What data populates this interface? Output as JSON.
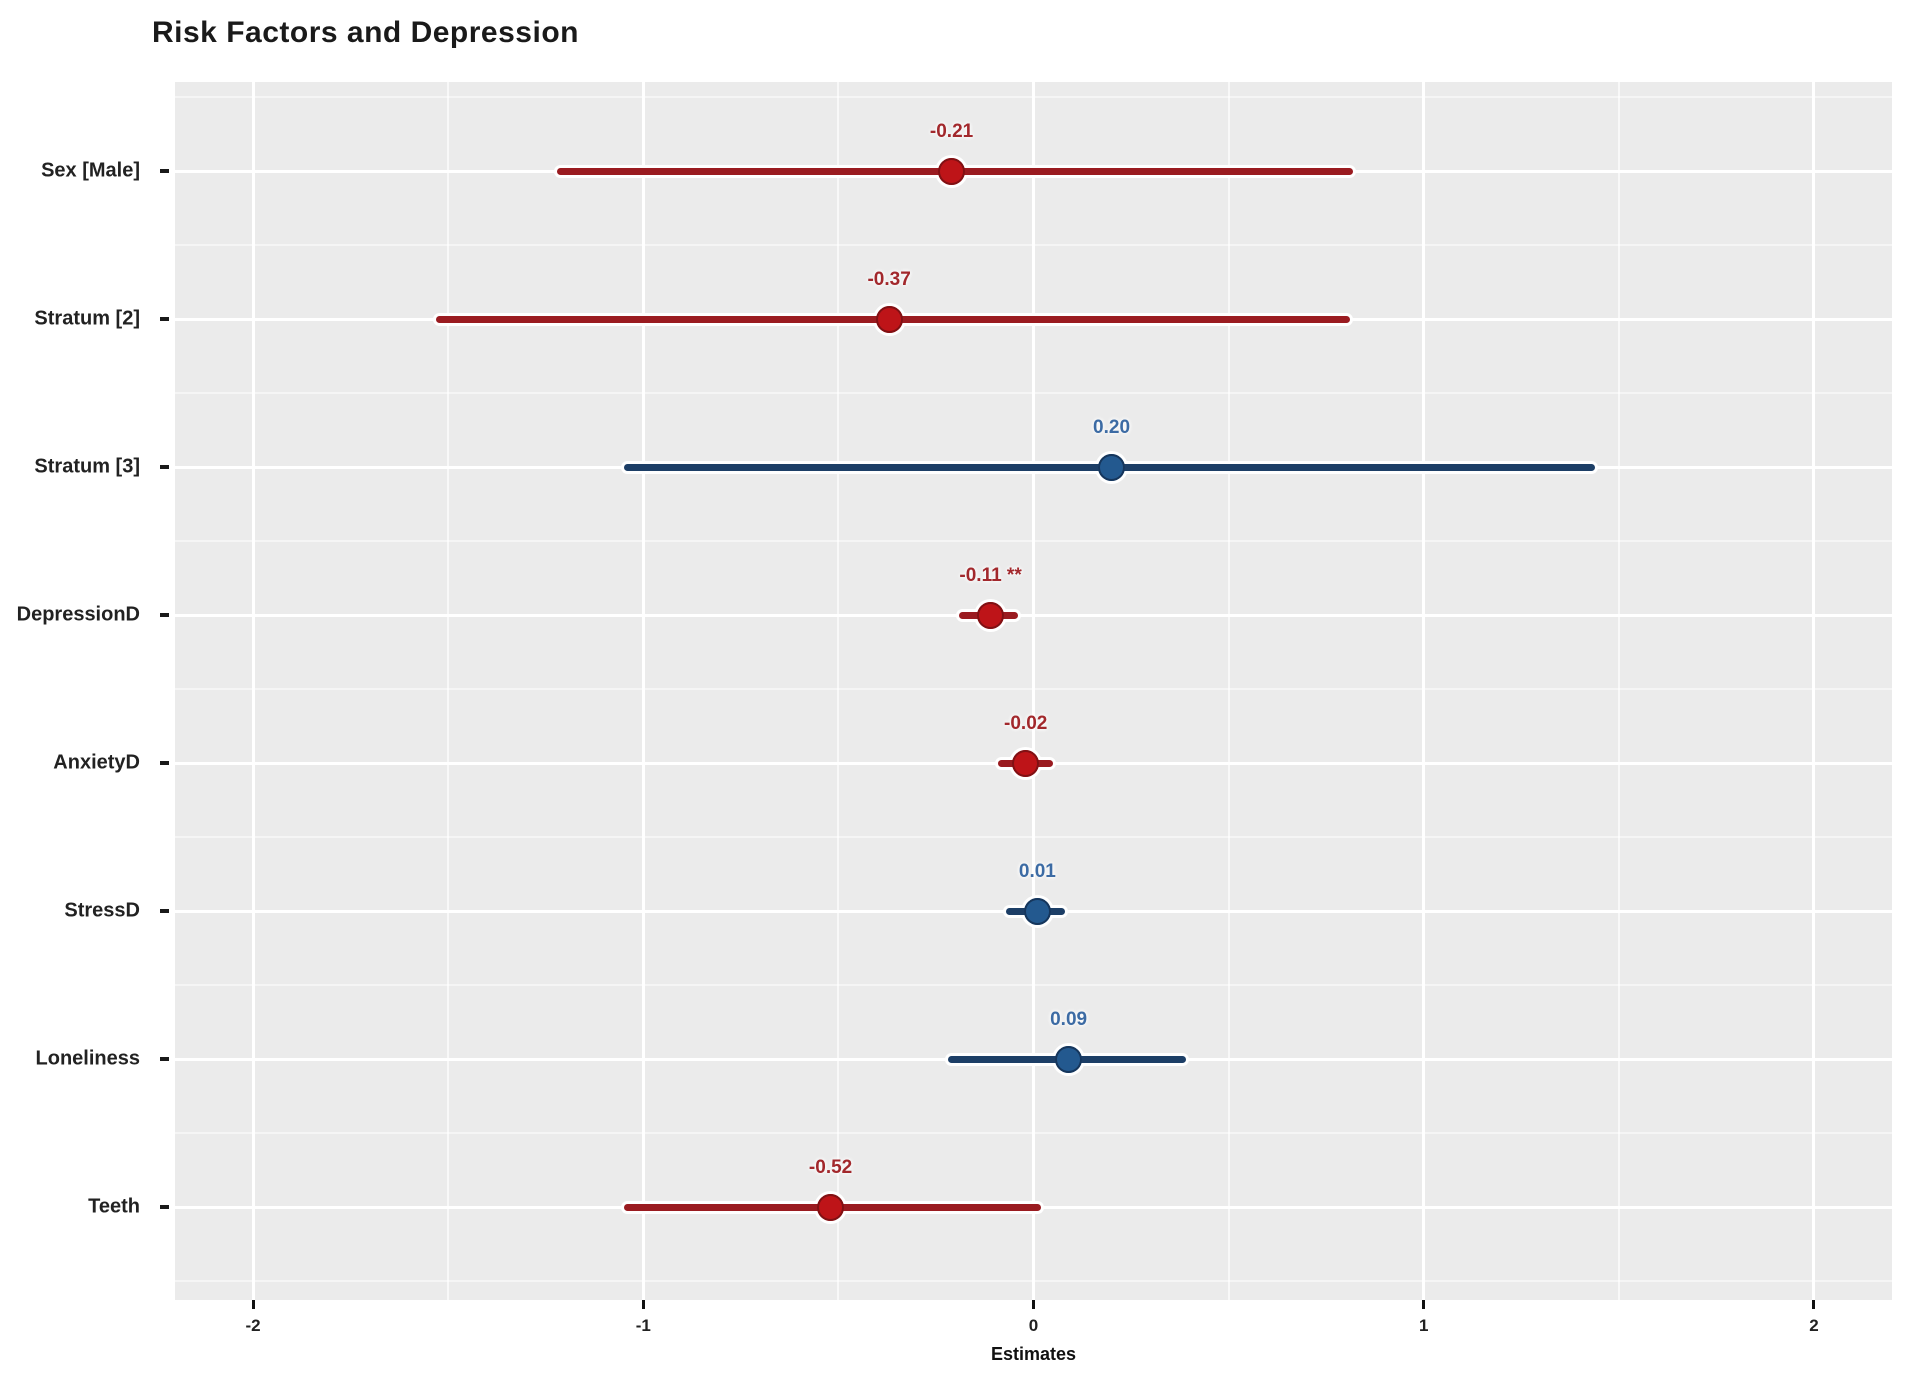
{
  "chart_data": {
    "type": "scatter",
    "variant": "forest-plot-dot-whisker",
    "title": "Risk Factors and Depression",
    "xlabel": "Estimates",
    "ylabel": "",
    "xlim": [
      -2.2,
      2.2
    ],
    "xticks": [
      -2,
      -1,
      0,
      1,
      2
    ],
    "xtick_labels": [
      "-2",
      "-1",
      "0",
      "1",
      "2"
    ],
    "grid": "on",
    "panel_bg": "#ebebeb",
    "grid_color": "#ffffff",
    "rows": [
      {
        "term": "Sex [Male]",
        "estimate": -0.21,
        "label": "-0.21",
        "ci": [
          -1.22,
          0.82
        ],
        "color": "red"
      },
      {
        "term": "Stratum [2]",
        "estimate": -0.37,
        "label": "-0.37",
        "ci": [
          -1.53,
          0.81
        ],
        "color": "red"
      },
      {
        "term": "Stratum [3]",
        "estimate": 0.2,
        "label": "0.20",
        "ci": [
          -1.05,
          1.44
        ],
        "color": "blue"
      },
      {
        "term": "DepressionD",
        "estimate": -0.11,
        "label": "-0.11 **",
        "ci": [
          -0.19,
          -0.04
        ],
        "color": "red"
      },
      {
        "term": "AnxietyD",
        "estimate": -0.02,
        "label": "-0.02",
        "ci": [
          -0.09,
          0.05
        ],
        "color": "red"
      },
      {
        "term": "StressD",
        "estimate": 0.01,
        "label": "0.01",
        "ci": [
          -0.07,
          0.08
        ],
        "color": "blue"
      },
      {
        "term": "Loneliness",
        "estimate": 0.09,
        "label": "0.09",
        "ci": [
          -0.22,
          0.39
        ],
        "color": "blue"
      },
      {
        "term": "Teeth",
        "estimate": -0.52,
        "label": "-0.52",
        "ci": [
          -1.05,
          0.02
        ],
        "color": "red"
      }
    ],
    "colors": {
      "red": {
        "line": "#9A1B20",
        "dot": "#BE1418",
        "rim": "#801114",
        "label": "#A2282C"
      },
      "blue": {
        "line": "#1C3E66",
        "dot": "#23598F",
        "rim": "#16365C",
        "label": "#3C6BA4"
      }
    }
  }
}
